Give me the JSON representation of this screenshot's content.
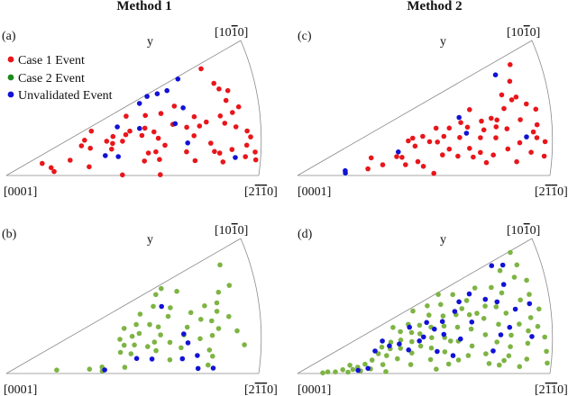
{
  "column_titles": [
    "Method 1",
    "Method 2"
  ],
  "corner_labels": {
    "origin": "[0001]",
    "right": "[2110]",
    "top": "[1010]"
  },
  "y_label": "y",
  "colors": {
    "case1": "#e8161b",
    "case2": "#7db443",
    "unvalidated": "#1212d6"
  },
  "legend": {
    "items": [
      {
        "label": "Case 1 Event",
        "color": "#e8161b"
      },
      {
        "label": "Case 2 Event",
        "color": "#1a8a1a"
      },
      {
        "label": "Unvalidated Event",
        "color": "#1212d6"
      }
    ]
  },
  "panels": [
    {
      "label": "(a)",
      "case1": [
        [
          0.26,
          0.45
        ],
        [
          0.15,
          0.62
        ],
        [
          0.88,
          0.96
        ],
        [
          0.9,
          0.8
        ],
        [
          0.92,
          0.63
        ],
        [
          0.93,
          0.4
        ],
        [
          0.96,
          0.55
        ],
        [
          0.98,
          0.3
        ],
        [
          0.99,
          0.18
        ],
        [
          0.99,
          0.12
        ],
        [
          0.97,
          0.35
        ],
        [
          0.94,
          0.7
        ],
        [
          0.91,
          0.74
        ],
        [
          0.89,
          0.45
        ],
        [
          0.9,
          0.22
        ],
        [
          0.86,
          0.12
        ],
        [
          0.88,
          0.52
        ],
        [
          0.93,
          0.52
        ],
        [
          0.96,
          0.24
        ],
        [
          0.95,
          0.15
        ],
        [
          0.82,
          0.5
        ],
        [
          0.82,
          0.3
        ],
        [
          0.85,
          0.2
        ],
        [
          0.78,
          0.58
        ],
        [
          0.79,
          0.48
        ],
        [
          0.76,
          0.4
        ],
        [
          0.74,
          0.5
        ],
        [
          0.72,
          0.25
        ],
        [
          0.75,
          0.15
        ],
        [
          0.72,
          0.75
        ],
        [
          0.69,
          0.57
        ],
        [
          0.6,
          0.78
        ],
        [
          0.58,
          0.63
        ],
        [
          0.52,
          0.66
        ],
        [
          0.56,
          0.55
        ],
        [
          0.61,
          0.55
        ],
        [
          0.64,
          0.36
        ],
        [
          0.62,
          0.46
        ],
        [
          0.48,
          0.55
        ],
        [
          0.5,
          0.63
        ],
        [
          0.45,
          0.67
        ],
        [
          0.38,
          0.92
        ],
        [
          0.42,
          0.63
        ],
        [
          0.6,
          0.3
        ],
        [
          0.57,
          0.3
        ],
        [
          0.61,
          0.2
        ],
        [
          0.55,
          0.2
        ],
        [
          0.44,
          0.56
        ],
        [
          0.43,
          0.47
        ],
        [
          0.35,
          0.6
        ],
        [
          0.32,
          0.72
        ],
        [
          0.34,
          0.81
        ],
        [
          0.53,
          0.88
        ],
        [
          0.18,
          0.33
        ],
        [
          0.33,
          0.2
        ],
        [
          0.19,
          0.16
        ],
        [
          0.46,
          0.01
        ],
        [
          0.61,
          0.01
        ],
        [
          0.83,
          0.22
        ],
        [
          0.66,
          0.73
        ]
      ],
      "case2": [],
      "unvalidated": [
        [
          0.6,
          0.95
        ],
        [
          0.64,
          0.98
        ],
        [
          0.68,
          0.95
        ],
        [
          0.72,
          0.93
        ],
        [
          0.78,
          0.98
        ],
        [
          0.75,
          0.7
        ],
        [
          0.7,
          0.57
        ],
        [
          0.48,
          0.79
        ],
        [
          0.4,
          0.38
        ],
        [
          0.45,
          0.32
        ],
        [
          0.56,
          0.65
        ],
        [
          0.91,
          0.15
        ],
        [
          0.73,
          0.34
        ]
      ]
    },
    {
      "label": "(b)",
      "case1": [],
      "case2": [
        [
          0.95,
          0.9
        ],
        [
          0.95,
          0.72
        ],
        [
          0.9,
          0.7
        ],
        [
          0.88,
          0.62
        ],
        [
          0.87,
          0.55
        ],
        [
          0.83,
          0.63
        ],
        [
          0.84,
          0.48
        ],
        [
          0.86,
          0.4
        ],
        [
          0.83,
          0.35
        ],
        [
          0.81,
          0.22
        ],
        [
          0.82,
          0.16
        ],
        [
          0.8,
          0.52
        ],
        [
          0.78,
          0.34
        ],
        [
          0.77,
          0.61
        ],
        [
          0.7,
          0.73
        ],
        [
          0.68,
          0.65
        ],
        [
          0.74,
          0.48
        ],
        [
          0.72,
          0.41
        ],
        [
          0.7,
          0.28
        ],
        [
          0.66,
          0.36
        ],
        [
          0.63,
          0.47
        ],
        [
          0.6,
          0.29
        ],
        [
          0.6,
          0.63
        ],
        [
          0.63,
          0.57
        ],
        [
          0.55,
          0.69
        ],
        [
          0.55,
          0.56
        ],
        [
          0.52,
          0.55
        ],
        [
          0.58,
          0.8
        ],
        [
          0.64,
          0.82
        ],
        [
          0.67,
          0.93
        ],
        [
          0.7,
          0.96
        ],
        [
          0.75,
          0.86
        ],
        [
          0.5,
          0.7
        ],
        [
          0.48,
          0.45
        ],
        [
          0.46,
          0.35
        ],
        [
          0.5,
          0.3
        ],
        [
          0.47,
          0.56
        ],
        [
          0.47,
          0.1
        ],
        [
          0.8,
          0.08
        ],
        [
          0.91,
          0.48
        ],
        [
          0.93,
          0.35
        ],
        [
          0.95,
          0.23
        ],
        [
          0.2,
          0.13
        ],
        [
          0.33,
          0.1
        ],
        [
          0.38,
          0.05
        ],
        [
          0.38,
          0.13
        ],
        [
          0.65,
          0.16
        ],
        [
          0.52,
          0.42
        ],
        [
          0.6,
          0.4
        ],
        [
          0.57,
          0.36
        ]
      ],
      "unvalidated": [
        [
          0.67,
          0.78
        ],
        [
          0.72,
          0.42
        ],
        [
          0.73,
          0.32
        ],
        [
          0.7,
          0.16
        ],
        [
          0.76,
          0.18
        ],
        [
          0.76,
          0.05
        ],
        [
          0.82,
          0.05
        ],
        [
          0.39,
          0.07
        ],
        [
          0.58,
          0.19
        ],
        [
          0.52,
          0.22
        ]
      ]
    },
    {
      "label": "(c)",
      "case1": [
        [
          0.95,
          0.92
        ],
        [
          0.92,
          0.8
        ],
        [
          0.92,
          0.66
        ],
        [
          0.95,
          0.58
        ],
        [
          0.98,
          0.52
        ],
        [
          0.97,
          0.4
        ],
        [
          0.99,
          0.26
        ],
        [
          0.98,
          0.15
        ],
        [
          0.95,
          0.35
        ],
        [
          0.93,
          0.19
        ],
        [
          0.91,
          0.47
        ],
        [
          0.89,
          0.28
        ],
        [
          0.87,
          0.12
        ],
        [
          0.86,
          0.6
        ],
        [
          0.87,
          0.72
        ],
        [
          0.85,
          0.42
        ],
        [
          0.82,
          0.52
        ],
        [
          0.84,
          0.24
        ],
        [
          0.8,
          0.55
        ],
        [
          0.8,
          0.36
        ],
        [
          0.76,
          0.46
        ],
        [
          0.74,
          0.39
        ],
        [
          0.73,
          0.7
        ],
        [
          0.7,
          0.53
        ],
        [
          0.69,
          0.3
        ],
        [
          0.66,
          0.44
        ],
        [
          0.63,
          0.58
        ],
        [
          0.6,
          0.5
        ],
        [
          0.58,
          0.63
        ],
        [
          0.52,
          0.58
        ],
        [
          0.48,
          0.6
        ],
        [
          0.46,
          0.58
        ],
        [
          0.48,
          0.47
        ],
        [
          0.54,
          0.48
        ],
        [
          0.57,
          0.45
        ],
        [
          0.61,
          0.33
        ],
        [
          0.58,
          0.27
        ],
        [
          0.64,
          0.23
        ],
        [
          0.7,
          0.2
        ],
        [
          0.75,
          0.13
        ],
        [
          0.78,
          0.2
        ],
        [
          0.76,
          0.55
        ],
        [
          0.73,
          0.24
        ],
        [
          0.3,
          0.45
        ],
        [
          0.34,
          0.24
        ],
        [
          0.4,
          0.36
        ],
        [
          0.42,
          0.33
        ],
        [
          0.43,
          0.19
        ],
        [
          0.48,
          0.22
        ],
        [
          0.5,
          0.14
        ],
        [
          0.28,
          0.18
        ],
        [
          0.54,
          0.03
        ],
        [
          0.9,
          0.65
        ],
        [
          0.81,
          0.46
        ],
        [
          0.68,
          0.6
        ],
        [
          0.96,
          0.3
        ]
      ],
      "case2": [],
      "unvalidated": [
        [
          0.88,
          0.9
        ],
        [
          0.68,
          0.66
        ],
        [
          0.69,
          0.47
        ],
        [
          0.19,
          0.19
        ],
        [
          0.19,
          0.1
        ],
        [
          0.41,
          0.44
        ],
        [
          0.92,
          0.32
        ]
      ]
    },
    {
      "label": "(d)",
      "case1": [],
      "case2": [
        [
          0.97,
          0.99
        ],
        [
          0.97,
          0.88
        ],
        [
          0.98,
          0.74
        ],
        [
          0.97,
          0.63
        ],
        [
          0.99,
          0.5
        ],
        [
          0.97,
          0.37
        ],
        [
          0.99,
          0.28
        ],
        [
          0.99,
          0.17
        ],
        [
          0.99,
          0.08
        ],
        [
          0.95,
          0.45
        ],
        [
          0.94,
          0.8
        ],
        [
          0.93,
          0.61
        ],
        [
          0.92,
          0.25
        ],
        [
          0.91,
          0.12
        ],
        [
          0.9,
          0.42
        ],
        [
          0.9,
          0.9
        ],
        [
          0.87,
          0.72
        ],
        [
          0.86,
          0.54
        ],
        [
          0.86,
          0.34
        ],
        [
          0.85,
          0.24
        ],
        [
          0.84,
          0.8
        ],
        [
          0.83,
          0.62
        ],
        [
          0.82,
          0.46
        ],
        [
          0.82,
          0.12
        ],
        [
          0.8,
          0.3
        ],
        [
          0.79,
          0.66
        ],
        [
          0.78,
          0.86
        ],
        [
          0.77,
          0.55
        ],
        [
          0.76,
          0.39
        ],
        [
          0.75,
          0.2
        ],
        [
          0.73,
          0.78
        ],
        [
          0.72,
          0.63
        ],
        [
          0.71,
          0.48
        ],
        [
          0.7,
          0.3
        ],
        [
          0.69,
          0.9
        ],
        [
          0.67,
          0.68
        ],
        [
          0.66,
          0.54
        ],
        [
          0.65,
          0.38
        ],
        [
          0.64,
          0.16
        ],
        [
          0.63,
          0.86
        ],
        [
          0.62,
          0.72
        ],
        [
          0.61,
          0.6
        ],
        [
          0.6,
          0.46
        ],
        [
          0.59,
          0.28
        ],
        [
          0.57,
          0.8
        ],
        [
          0.56,
          0.64
        ],
        [
          0.55,
          0.5
        ],
        [
          0.54,
          0.36
        ],
        [
          0.53,
          0.2
        ],
        [
          0.52,
          0.72
        ],
        [
          0.51,
          0.6
        ],
        [
          0.5,
          0.42
        ],
        [
          0.48,
          0.66
        ],
        [
          0.47,
          0.52
        ],
        [
          0.46,
          0.34
        ],
        [
          0.45,
          0.15
        ],
        [
          0.44,
          0.74
        ],
        [
          0.43,
          0.6
        ],
        [
          0.42,
          0.46
        ],
        [
          0.4,
          0.28
        ],
        [
          0.39,
          0.62
        ],
        [
          0.38,
          0.5
        ],
        [
          0.36,
          0.38
        ],
        [
          0.35,
          0.58
        ],
        [
          0.34,
          0.2
        ],
        [
          0.33,
          0.46
        ],
        [
          0.3,
          0.34
        ],
        [
          0.29,
          0.12
        ],
        [
          0.27,
          0.26
        ],
        [
          0.25,
          0.08
        ],
        [
          0.24,
          0.2
        ],
        [
          0.22,
          0.14
        ],
        [
          0.21,
          0.3
        ],
        [
          0.2,
          0.05
        ],
        [
          0.18,
          0.16
        ],
        [
          0.15,
          0.08
        ],
        [
          0.12,
          0.1
        ],
        [
          0.1,
          0.05
        ],
        [
          0.35,
          0.04
        ],
        [
          0.55,
          0.06
        ],
        [
          0.6,
          0.12
        ],
        [
          0.68,
          0.2
        ],
        [
          0.8,
          0.08
        ],
        [
          0.88,
          0.06
        ],
        [
          0.93,
          0.35
        ],
        [
          0.75,
          0.62
        ],
        [
          0.58,
          0.92
        ],
        [
          0.48,
          0.8
        ],
        [
          0.42,
          0.86
        ],
        [
          0.52,
          0.95
        ],
        [
          0.64,
          0.98
        ],
        [
          0.7,
          0.72
        ],
        [
          0.62,
          0.4
        ],
        [
          0.84,
          0.16
        ],
        [
          0.76,
          0.1
        ]
      ],
      "unvalidated": [
        [
          0.88,
          0.97
        ],
        [
          0.92,
          0.93
        ],
        [
          0.89,
          0.78
        ],
        [
          0.84,
          0.66
        ],
        [
          0.9,
          0.55
        ],
        [
          0.8,
          0.72
        ],
        [
          0.75,
          0.83
        ],
        [
          0.7,
          0.8
        ],
        [
          0.67,
          0.72
        ],
        [
          0.61,
          0.66
        ],
        [
          0.57,
          0.6
        ],
        [
          0.55,
          0.72
        ],
        [
          0.52,
          0.54
        ],
        [
          0.5,
          0.5
        ],
        [
          0.48,
          0.75
        ],
        [
          0.45,
          0.4
        ],
        [
          0.42,
          0.54
        ],
        [
          0.38,
          0.56
        ],
        [
          0.36,
          0.7
        ],
        [
          0.32,
          0.54
        ],
        [
          0.96,
          0.56
        ],
        [
          0.94,
          0.3
        ],
        [
          0.86,
          0.41
        ],
        [
          0.82,
          0.36
        ],
        [
          0.78,
          0.22
        ],
        [
          0.72,
          0.55
        ],
        [
          0.66,
          0.4
        ],
        [
          0.6,
          0.5
        ],
        [
          0.28,
          0.14
        ],
        [
          0.24,
          0.1
        ],
        [
          0.62,
          0.22
        ],
        [
          0.56,
          0.3
        ]
      ]
    }
  ]
}
